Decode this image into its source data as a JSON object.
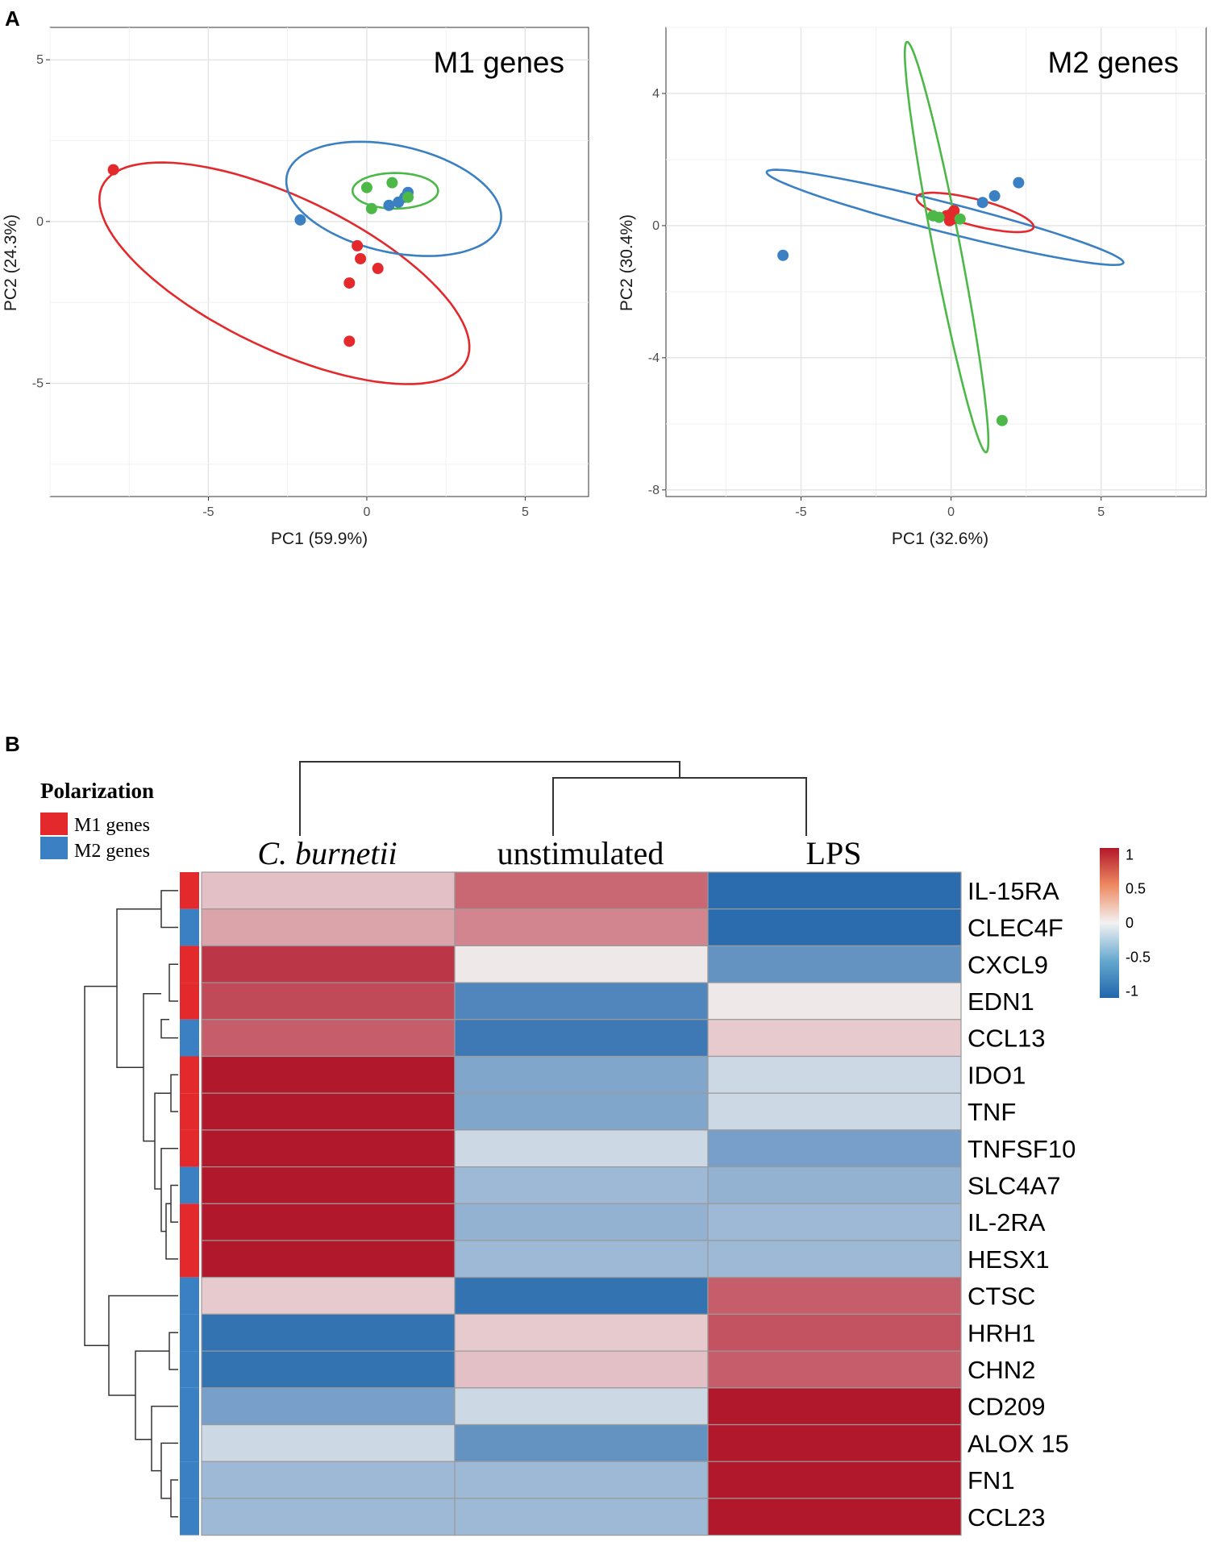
{
  "panel_a_label": "A",
  "panel_b_label": "B",
  "chart_data": [
    {
      "type": "scatter",
      "title": "M1 genes",
      "xlabel": "PC1 (59.9%)",
      "ylabel": "PC2 (24.3%)",
      "xlim": [
        -10,
        7
      ],
      "ylim": [
        -8.5,
        6
      ],
      "xticks": [
        "-5",
        "0",
        "5"
      ],
      "yticks": [
        "5",
        "0",
        "-5"
      ],
      "xtick_values": [
        -5,
        0,
        5
      ],
      "ytick_values": [
        5,
        0,
        -5
      ],
      "series": [
        {
          "name": "C. burnetii",
          "color": "#e3292c",
          "points": [
            [
              -8.0,
              1.6
            ],
            [
              -0.3,
              -0.75
            ],
            [
              -0.2,
              -1.15
            ],
            [
              0.35,
              -1.45
            ],
            [
              -0.55,
              -1.9
            ],
            [
              -0.55,
              -3.7
            ]
          ],
          "ellipse": {
            "cx": -2.6,
            "cy": -1.6,
            "rx": 6.35,
            "ry": 2.35,
            "angle_deg": -25
          }
        },
        {
          "name": "LPS",
          "color": "#3a80c3",
          "points": [
            [
              -2.1,
              0.05
            ],
            [
              0.7,
              0.5
            ],
            [
              1.0,
              0.6
            ],
            [
              1.2,
              0.75
            ],
            [
              1.3,
              0.9
            ]
          ],
          "ellipse": {
            "cx": 0.85,
            "cy": 0.7,
            "rx": 3.45,
            "ry": 1.65,
            "angle_deg": -12
          }
        },
        {
          "name": "unstimulated",
          "color": "#4cb848",
          "points": [
            [
              0.0,
              1.05
            ],
            [
              0.8,
              1.2
            ],
            [
              0.15,
              0.4
            ],
            [
              1.3,
              0.75
            ]
          ],
          "ellipse": {
            "cx": 0.9,
            "cy": 0.95,
            "rx": 1.35,
            "ry": 0.55,
            "angle_deg": 0
          }
        }
      ]
    },
    {
      "type": "scatter",
      "title": "M2 genes",
      "xlabel": "PC1 (32.6%)",
      "ylabel": "PC2 (30.4%)",
      "xlim": [
        -9.5,
        8.5
      ],
      "ylim": [
        -8.2,
        6.0
      ],
      "xticks": [
        "-5",
        "0",
        "5"
      ],
      "yticks": [
        "4",
        "0",
        "-4",
        "-8"
      ],
      "xtick_values": [
        -5,
        0,
        5
      ],
      "ytick_values": [
        4,
        0,
        -4,
        -8
      ],
      "series": [
        {
          "name": "LPS",
          "color": "#3a80c3",
          "points": [
            [
              -5.6,
              -0.9
            ],
            [
              1.05,
              0.7
            ],
            [
              1.45,
              0.9
            ],
            [
              2.25,
              1.3
            ]
          ],
          "ellipse": {
            "cx": -0.2,
            "cy": 0.25,
            "rx": 6.1,
            "ry": 0.45,
            "angle_deg": -13
          }
        },
        {
          "name": "C. burnetii",
          "color": "#e3292c",
          "points": [
            [
              0.0,
              0.35
            ],
            [
              -0.15,
              0.3
            ],
            [
              0.05,
              0.2
            ],
            [
              0.1,
              0.45
            ],
            [
              -0.05,
              0.15
            ]
          ],
          "ellipse": {
            "cx": 0.8,
            "cy": 0.4,
            "rx": 2.0,
            "ry": 0.4,
            "angle_deg": -13
          }
        },
        {
          "name": "unstimulated",
          "color": "#4cb848",
          "points": [
            [
              -0.6,
              0.3
            ],
            [
              -0.4,
              0.25
            ],
            [
              0.3,
              0.2
            ],
            [
              1.7,
              -5.9
            ]
          ],
          "ellipse": {
            "cx": -0.15,
            "cy": -0.65,
            "rx": 6.35,
            "ry": 0.45,
            "angle_deg": 102
          }
        }
      ]
    },
    {
      "type": "heatmap",
      "columns": [
        "C. burnetii",
        "unstimulated",
        "LPS"
      ],
      "rows": [
        "IL-15RA",
        "CLEC4F",
        "CXCL9",
        "EDN1",
        "CCL13",
        "IDO1",
        "TNF",
        "TNFSF10",
        "SLC4A7",
        "IL-2RA",
        "HESX1",
        "CTSC",
        "HRH1",
        "CHN2",
        "CD209",
        "ALOX 15",
        "FN1",
        "CCL23"
      ],
      "polarization": [
        "M1",
        "M2",
        "M1",
        "M1",
        "M2",
        "M1",
        "M1",
        "M1",
        "M2",
        "M1",
        "M1",
        "M2",
        "M2",
        "M2",
        "M2",
        "M2",
        "M2",
        "M2"
      ],
      "values": [
        [
          0.25,
          0.7,
          -1.05
        ],
        [
          0.4,
          0.55,
          -1.05
        ],
        [
          0.95,
          0.05,
          -0.75
        ],
        [
          0.85,
          -0.85,
          0.05
        ],
        [
          0.75,
          -0.95,
          0.2
        ],
        [
          1.15,
          -0.6,
          -0.2
        ],
        [
          1.15,
          -0.6,
          -0.2
        ],
        [
          1.15,
          -0.2,
          -0.65
        ],
        [
          1.15,
          -0.45,
          -0.5
        ],
        [
          1.15,
          -0.5,
          -0.45
        ],
        [
          1.15,
          -0.45,
          -0.45
        ],
        [
          0.2,
          -1.0,
          0.75
        ],
        [
          -1.0,
          0.2,
          0.8
        ],
        [
          -1.0,
          0.25,
          0.75
        ],
        [
          -0.65,
          -0.2,
          1.15
        ],
        [
          -0.2,
          -0.75,
          1.15
        ],
        [
          -0.45,
          -0.45,
          1.15
        ],
        [
          -0.45,
          -0.45,
          1.15
        ]
      ],
      "color_scale": {
        "min": -1.1,
        "max": 1.1,
        "low": "#2166ac",
        "mid": "#f2f2f2",
        "high": "#b2182b"
      },
      "colorbar_ticks": [
        "1",
        "0.5",
        "0",
        "-0.5",
        "-1"
      ],
      "colorbar_tick_values": [
        1,
        0.5,
        0,
        -0.5,
        -1
      ],
      "legend": {
        "title": "Polarization",
        "items": [
          {
            "label": "M1 genes",
            "color": "#e3292c"
          },
          {
            "label": "M2 genes",
            "color": "#3a80c3"
          }
        ]
      }
    }
  ]
}
